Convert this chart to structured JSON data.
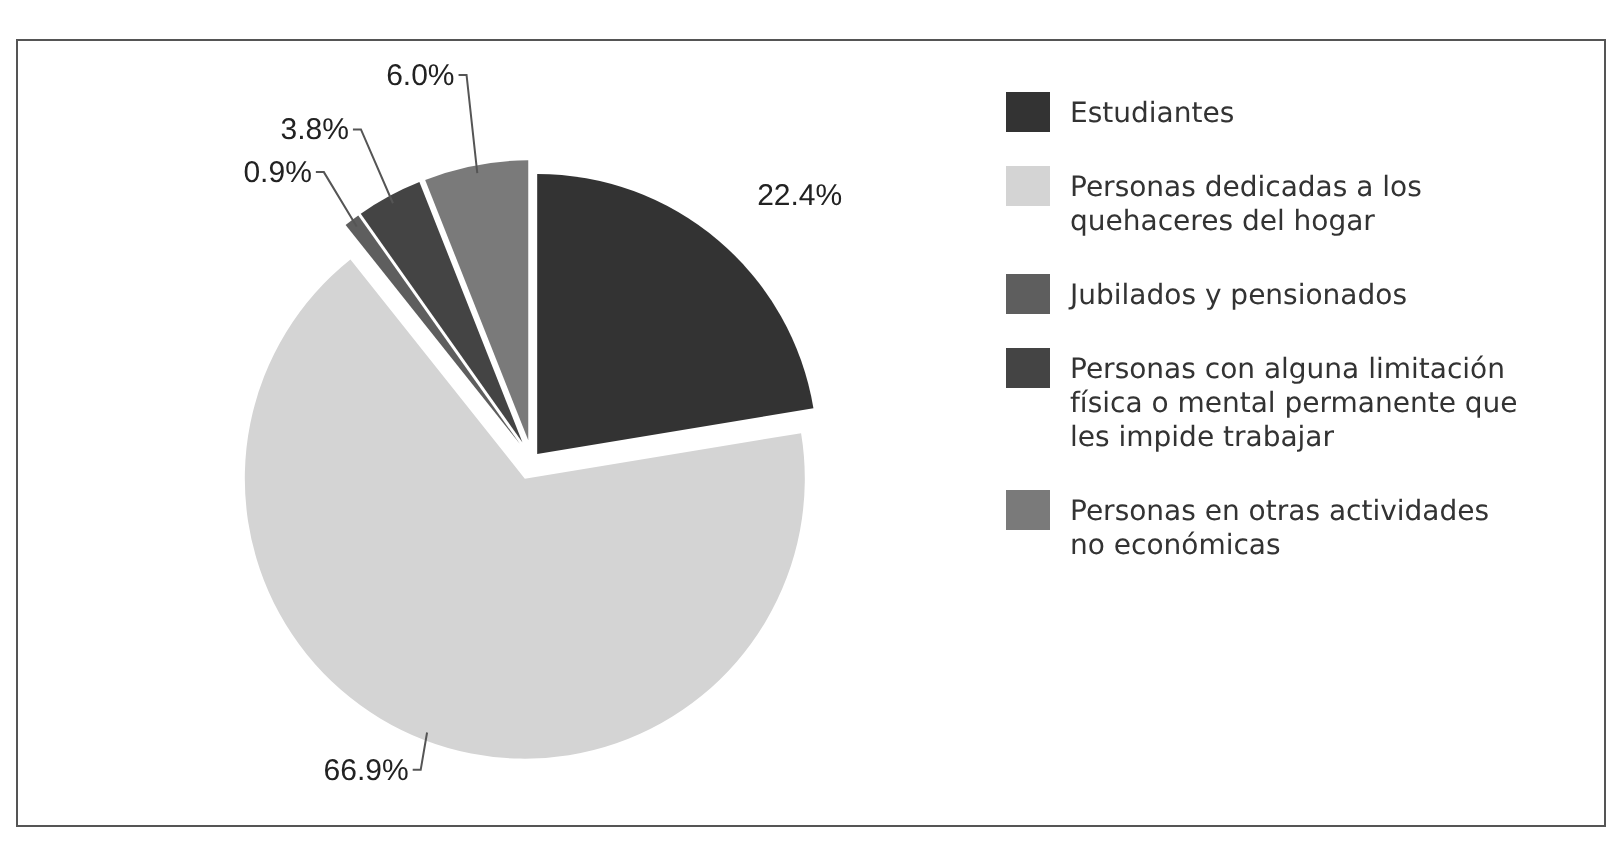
{
  "chart_data": {
    "type": "pie",
    "categories": [
      "Estudiantes",
      "Personas dedicadas a los quehaceres del hogar",
      "Jubilados y pensionados",
      "Personas con alguna limitación física o mental permanente que les impide trabajar",
      "Personas en otras actividades no económicas"
    ],
    "values": [
      22.4,
      66.9,
      0.9,
      3.8,
      6.0
    ],
    "colors": [
      "#333333",
      "#d4d4d4",
      "#5e5e5e",
      "#444444",
      "#7a7a7a"
    ],
    "value_labels": [
      "22.4%",
      "66.9%",
      "0.9%",
      "3.8%",
      "6.0%"
    ],
    "legend": "right"
  }
}
